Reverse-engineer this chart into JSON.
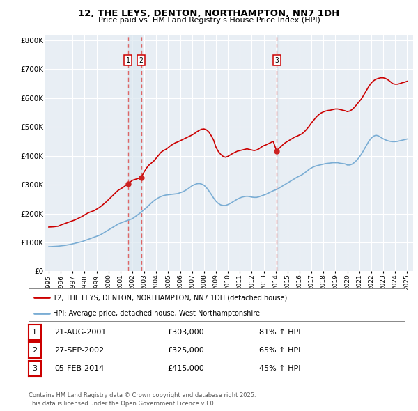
{
  "title": "12, THE LEYS, DENTON, NORTHAMPTON, NN7 1DH",
  "subtitle": "Price paid vs. HM Land Registry's House Price Index (HPI)",
  "legend_line1": "12, THE LEYS, DENTON, NORTHAMPTON, NN7 1DH (detached house)",
  "legend_line2": "HPI: Average price, detached house, West Northamptonshire",
  "transactions": [
    {
      "num": 1,
      "date": "21-AUG-2001",
      "price": 303000,
      "pct": "81%",
      "year": 2001.64
    },
    {
      "num": 2,
      "date": "27-SEP-2002",
      "price": 325000,
      "pct": "65%",
      "year": 2002.74
    },
    {
      "num": 3,
      "date": "05-FEB-2014",
      "price": 415000,
      "pct": "45%",
      "year": 2014.09
    }
  ],
  "footer_line1": "Contains HM Land Registry data © Crown copyright and database right 2025.",
  "footer_line2": "This data is licensed under the Open Government Licence v3.0.",
  "price_line_color": "#cc0000",
  "hpi_line_color": "#7aadd4",
  "vline_color_12": "#c8d8e8",
  "vline_dash_color_12": "#dd6666",
  "vline_color_3": "#c8d8e8",
  "vline_dash_color_3": "#dd6666",
  "background_color": "#e8eef4",
  "grid_color": "#ffffff",
  "ylim": [
    0,
    820000
  ],
  "xlim_start": 1994.7,
  "xlim_end": 2025.5,
  "price_data": {
    "years": [
      1995.0,
      1995.2,
      1995.4,
      1995.6,
      1995.8,
      1996.0,
      1996.2,
      1996.4,
      1996.6,
      1996.8,
      1997.0,
      1997.2,
      1997.4,
      1997.6,
      1997.8,
      1998.0,
      1998.2,
      1998.4,
      1998.6,
      1998.8,
      1999.0,
      1999.2,
      1999.4,
      1999.6,
      1999.8,
      2000.0,
      2000.2,
      2000.4,
      2000.6,
      2000.8,
      2001.0,
      2001.2,
      2001.4,
      2001.64,
      2002.0,
      2002.74,
      2003.0,
      2003.2,
      2003.4,
      2003.6,
      2003.8,
      2004.0,
      2004.2,
      2004.4,
      2004.6,
      2004.8,
      2005.0,
      2005.2,
      2005.4,
      2005.6,
      2005.8,
      2006.0,
      2006.2,
      2006.4,
      2006.6,
      2006.8,
      2007.0,
      2007.2,
      2007.4,
      2007.6,
      2007.8,
      2008.0,
      2008.2,
      2008.4,
      2008.6,
      2008.8,
      2009.0,
      2009.2,
      2009.4,
      2009.6,
      2009.8,
      2010.0,
      2010.2,
      2010.4,
      2010.6,
      2010.8,
      2011.0,
      2011.2,
      2011.4,
      2011.6,
      2011.8,
      2012.0,
      2012.2,
      2012.4,
      2012.6,
      2012.8,
      2013.0,
      2013.2,
      2013.4,
      2013.6,
      2013.8,
      2014.09,
      2014.2,
      2014.4,
      2014.6,
      2014.8,
      2015.0,
      2015.2,
      2015.4,
      2015.6,
      2015.8,
      2016.0,
      2016.2,
      2016.4,
      2016.6,
      2016.8,
      2017.0,
      2017.2,
      2017.4,
      2017.6,
      2017.8,
      2018.0,
      2018.2,
      2018.4,
      2018.6,
      2018.8,
      2019.0,
      2019.2,
      2019.4,
      2019.6,
      2019.8,
      2020.0,
      2020.2,
      2020.4,
      2020.6,
      2020.8,
      2021.0,
      2021.2,
      2021.4,
      2021.6,
      2021.8,
      2022.0,
      2022.2,
      2022.4,
      2022.6,
      2022.8,
      2023.0,
      2023.2,
      2023.4,
      2023.6,
      2023.8,
      2024.0,
      2024.2,
      2024.4,
      2024.6,
      2024.8,
      2025.0
    ],
    "values": [
      153000,
      153500,
      154000,
      155000,
      156000,
      160000,
      163000,
      166000,
      169000,
      172000,
      175000,
      178000,
      182000,
      186000,
      190000,
      195000,
      200000,
      204000,
      207000,
      210000,
      215000,
      220000,
      226000,
      233000,
      240000,
      248000,
      256000,
      264000,
      272000,
      280000,
      285000,
      290000,
      296000,
      303000,
      315000,
      325000,
      345000,
      358000,
      368000,
      375000,
      382000,
      392000,
      402000,
      412000,
      418000,
      422000,
      428000,
      435000,
      440000,
      445000,
      448000,
      452000,
      456000,
      460000,
      464000,
      468000,
      472000,
      477000,
      483000,
      488000,
      492000,
      493000,
      490000,
      483000,
      470000,
      455000,
      430000,
      415000,
      405000,
      398000,
      395000,
      398000,
      403000,
      408000,
      412000,
      416000,
      418000,
      420000,
      422000,
      424000,
      422000,
      420000,
      418000,
      420000,
      424000,
      430000,
      435000,
      438000,
      442000,
      446000,
      450000,
      415000,
      422000,
      430000,
      438000,
      445000,
      450000,
      455000,
      460000,
      465000,
      468000,
      472000,
      476000,
      483000,
      492000,
      502000,
      514000,
      524000,
      534000,
      542000,
      548000,
      552000,
      555000,
      557000,
      558000,
      560000,
      562000,
      562000,
      560000,
      558000,
      556000,
      553000,
      555000,
      560000,
      568000,
      578000,
      588000,
      598000,
      612000,
      626000,
      640000,
      652000,
      660000,
      665000,
      668000,
      670000,
      670000,
      668000,
      663000,
      657000,
      650000,
      648000,
      648000,
      650000,
      653000,
      655000,
      658000
    ]
  },
  "hpi_data": {
    "years": [
      1995.0,
      1995.2,
      1995.4,
      1995.6,
      1995.8,
      1996.0,
      1996.2,
      1996.4,
      1996.6,
      1996.8,
      1997.0,
      1997.2,
      1997.4,
      1997.6,
      1997.8,
      1998.0,
      1998.2,
      1998.4,
      1998.6,
      1998.8,
      1999.0,
      1999.2,
      1999.4,
      1999.6,
      1999.8,
      2000.0,
      2000.2,
      2000.4,
      2000.6,
      2000.8,
      2001.0,
      2001.2,
      2001.4,
      2001.6,
      2001.8,
      2002.0,
      2002.2,
      2002.4,
      2002.6,
      2002.8,
      2003.0,
      2003.2,
      2003.4,
      2003.6,
      2003.8,
      2004.0,
      2004.2,
      2004.4,
      2004.6,
      2004.8,
      2005.0,
      2005.2,
      2005.4,
      2005.6,
      2005.8,
      2006.0,
      2006.2,
      2006.4,
      2006.6,
      2006.8,
      2007.0,
      2007.2,
      2007.4,
      2007.6,
      2007.8,
      2008.0,
      2008.2,
      2008.4,
      2008.6,
      2008.8,
      2009.0,
      2009.2,
      2009.4,
      2009.6,
      2009.8,
      2010.0,
      2010.2,
      2010.4,
      2010.6,
      2010.8,
      2011.0,
      2011.2,
      2011.4,
      2011.6,
      2011.8,
      2012.0,
      2012.2,
      2012.4,
      2012.6,
      2012.8,
      2013.0,
      2013.2,
      2013.4,
      2013.6,
      2013.8,
      2014.0,
      2014.2,
      2014.4,
      2014.6,
      2014.8,
      2015.0,
      2015.2,
      2015.4,
      2015.6,
      2015.8,
      2016.0,
      2016.2,
      2016.4,
      2016.6,
      2016.8,
      2017.0,
      2017.2,
      2017.4,
      2017.6,
      2017.8,
      2018.0,
      2018.2,
      2018.4,
      2018.6,
      2018.8,
      2019.0,
      2019.2,
      2019.4,
      2019.6,
      2019.8,
      2020.0,
      2020.2,
      2020.4,
      2020.6,
      2020.8,
      2021.0,
      2021.2,
      2021.4,
      2021.6,
      2021.8,
      2022.0,
      2022.2,
      2022.4,
      2022.6,
      2022.8,
      2023.0,
      2023.2,
      2023.4,
      2023.6,
      2023.8,
      2024.0,
      2024.2,
      2024.4,
      2024.6,
      2024.8,
      2025.0
    ],
    "values": [
      85000,
      85500,
      86000,
      86500,
      87000,
      88000,
      89000,
      90000,
      91500,
      93000,
      95000,
      97000,
      99000,
      101000,
      103000,
      106000,
      109000,
      112000,
      115000,
      118000,
      121000,
      124000,
      128000,
      133000,
      138000,
      143000,
      148000,
      153000,
      158000,
      163000,
      167000,
      170000,
      173000,
      176000,
      179000,
      182000,
      188000,
      194000,
      200000,
      207000,
      214000,
      221000,
      229000,
      237000,
      244000,
      250000,
      255000,
      259000,
      262000,
      264000,
      265000,
      266000,
      267000,
      268000,
      269000,
      272000,
      275000,
      279000,
      284000,
      290000,
      296000,
      300000,
      303000,
      304000,
      302000,
      298000,
      290000,
      279000,
      267000,
      254000,
      243000,
      235000,
      230000,
      228000,
      228000,
      231000,
      235000,
      240000,
      245000,
      250000,
      254000,
      257000,
      259000,
      260000,
      259000,
      257000,
      256000,
      256000,
      258000,
      261000,
      264000,
      267000,
      271000,
      275000,
      279000,
      282000,
      286000,
      291000,
      296000,
      301000,
      306000,
      311000,
      316000,
      321000,
      326000,
      330000,
      334000,
      340000,
      346000,
      353000,
      358000,
      362000,
      365000,
      367000,
      369000,
      371000,
      373000,
      374000,
      375000,
      376000,
      376000,
      376000,
      374000,
      373000,
      372000,
      368000,
      368000,
      371000,
      377000,
      385000,
      395000,
      407000,
      421000,
      436000,
      450000,
      461000,
      468000,
      471000,
      469000,
      464000,
      459000,
      455000,
      452000,
      450000,
      449000,
      449000,
      450000,
      452000,
      454000,
      456000,
      458000
    ]
  }
}
